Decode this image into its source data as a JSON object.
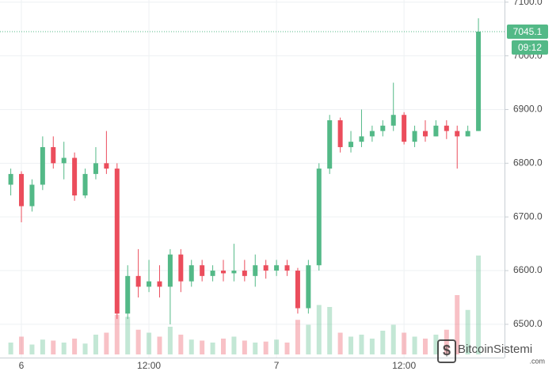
{
  "chart_data": {
    "type": "candlestick",
    "categories": [
      null,
      "6",
      null,
      null,
      null,
      null,
      null,
      null,
      null,
      null,
      null,
      null,
      null,
      "12:00",
      null,
      null,
      null,
      null,
      null,
      null,
      null,
      null,
      null,
      null,
      null,
      "7",
      null,
      null,
      null,
      null,
      null,
      null,
      null,
      null,
      null,
      null,
      null,
      "12:00",
      null,
      null,
      null,
      null,
      null,
      null,
      null
    ],
    "open": [
      6760,
      6780,
      6720,
      6760,
      6830,
      6800,
      6810,
      6740,
      6780,
      6800,
      6790,
      6520,
      6590,
      6570,
      6580,
      6570,
      6630,
      6580,
      6610,
      6590,
      6600,
      6595,
      6600,
      6590,
      6610,
      6600,
      6610,
      6600,
      6530,
      6610,
      6790,
      6880,
      6830,
      6840,
      6850,
      6860,
      6870,
      6890,
      6840,
      6860,
      6850,
      6870,
      6860,
      6850,
      6860
    ],
    "close": [
      6780,
      6720,
      6760,
      6830,
      6800,
      6810,
      6740,
      6780,
      6800,
      6790,
      6520,
      6590,
      6570,
      6580,
      6570,
      6630,
      6580,
      6610,
      6590,
      6600,
      6595,
      6600,
      6590,
      6610,
      6600,
      6610,
      6600,
      6530,
      6610,
      6790,
      6880,
      6830,
      6840,
      6850,
      6860,
      6870,
      6890,
      6840,
      6860,
      6850,
      6870,
      6860,
      6850,
      6860,
      7045.1
    ],
    "high": [
      6790,
      6785,
      6770,
      6850,
      6850,
      6840,
      6820,
      6790,
      6830,
      6860,
      6800,
      6610,
      6640,
      6620,
      6610,
      6640,
      6640,
      6620,
      6620,
      6610,
      6620,
      6650,
      6620,
      6630,
      6620,
      6620,
      6620,
      6605,
      6620,
      6800,
      6890,
      6885,
      6860,
      6900,
      6870,
      6880,
      6950,
      6895,
      6870,
      6880,
      6880,
      6880,
      6870,
      6870,
      7070
    ],
    "low": [
      6740,
      6690,
      6710,
      6750,
      6790,
      6770,
      6730,
      6735,
      6770,
      6780,
      6510,
      6510,
      6550,
      6560,
      6550,
      6500,
      6560,
      6570,
      6580,
      6580,
      6580,
      6580,
      6580,
      6570,
      6585,
      6590,
      6590,
      6520,
      6520,
      6600,
      6780,
      6820,
      6820,
      6830,
      6840,
      6850,
      6860,
      6835,
      6830,
      6840,
      6850,
      6845,
      6790,
      6850,
      6860
    ],
    "volume": [
      12,
      18,
      10,
      15,
      14,
      12,
      16,
      11,
      20,
      22,
      40,
      38,
      25,
      22,
      18,
      28,
      20,
      15,
      14,
      12,
      16,
      18,
      14,
      12,
      13,
      15,
      12,
      35,
      30,
      50,
      48,
      22,
      18,
      20,
      16,
      24,
      30,
      22,
      18,
      16,
      20,
      25,
      60,
      45,
      100
    ],
    "volume_lim": [
      0,
      100
    ],
    "up_color": "#53b987",
    "down_color": "#eb4d5c",
    "ylim": [
      6438,
      7104
    ],
    "yticks": [
      {
        "value": 6500,
        "label": "6500.0"
      },
      {
        "value": 6600,
        "label": "6600.0"
      },
      {
        "value": 6700,
        "label": "6700.0"
      },
      {
        "value": 6800,
        "label": "6800.0"
      },
      {
        "value": 6900,
        "label": "6900.0"
      },
      {
        "value": 7000,
        "label": "7000.0"
      },
      {
        "value": 7100,
        "label": "7100.0"
      }
    ],
    "grid": true,
    "last_price": {
      "value": 7045.1,
      "label": "7045.1"
    },
    "countdown": "09:12",
    "watermark": "BitcoinSistemi",
    "watermark_sub": ".com"
  }
}
